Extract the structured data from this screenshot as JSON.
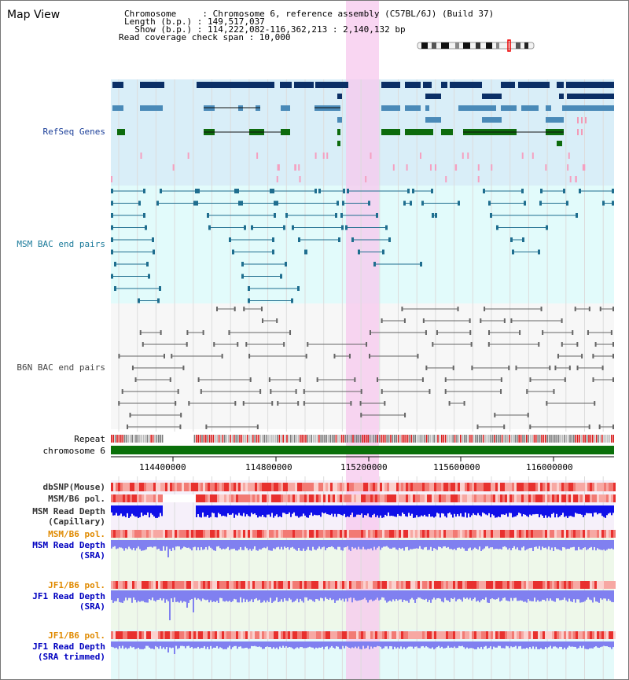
{
  "view": {
    "title": "Map View",
    "info_lines": [
      "Chromosome     : Chromosome 6, reference assembly (C57BL/6J) (Build 37)",
      "Length (b.p.) : 149,517,037",
      "  Show (b.p.) : 114,222,082-116,362,213 : 2,140,132 bp",
      "Read coverage check span : 10,000"
    ]
  },
  "tracks": {
    "refseq": "RefSeq Genes",
    "msm_bac": "MSM BAC end pairs",
    "b6n_bac": "B6N BAC end pairs",
    "repeat": "Repeat",
    "chromosome": "chromosome 6",
    "dbsnp": "dbSNP(Mouse)",
    "msm_b6_pol_1": "MSM/B6 pol.",
    "msm_depth_cap_1": "MSM Read Depth",
    "msm_depth_cap_2": "(Capillary)",
    "msm_b6_pol_2": "MSM/B6 pol.",
    "msm_depth_sra_1": "MSM Read Depth",
    "msm_depth_sra_2": "(SRA)",
    "jf1_b6_pol_1": "JF1/B6 pol.",
    "jf1_depth_sra_1": "JF1 Read Depth",
    "jf1_depth_sra_2": "(SRA)",
    "jf1_b6_pol_2": "JF1/B6 pol.",
    "jf1_depth_trim_1": "JF1 Read Depth",
    "jf1_depth_trim_2": "(SRA trimmed)"
  },
  "axis": {
    "ticks": [
      "114400000",
      "114800000",
      "115200000",
      "115600000",
      "116000000"
    ]
  },
  "colors": {
    "refseq_bg": "#d9eef8",
    "msm_bg": "#e2fbfb",
    "highlight": "#f7c8ee",
    "gene_navy": "#0b2f66",
    "gene_steel": "#4a8ab8",
    "gene_green": "#0d6b0d",
    "msm_line": "#1f6e8f",
    "b6n_line": "#666666",
    "chrom_bar": "#0a700a",
    "depth_dark": "#1010e8",
    "depth_light": "#8080f0",
    "snp_red": "#ee4444"
  }
}
